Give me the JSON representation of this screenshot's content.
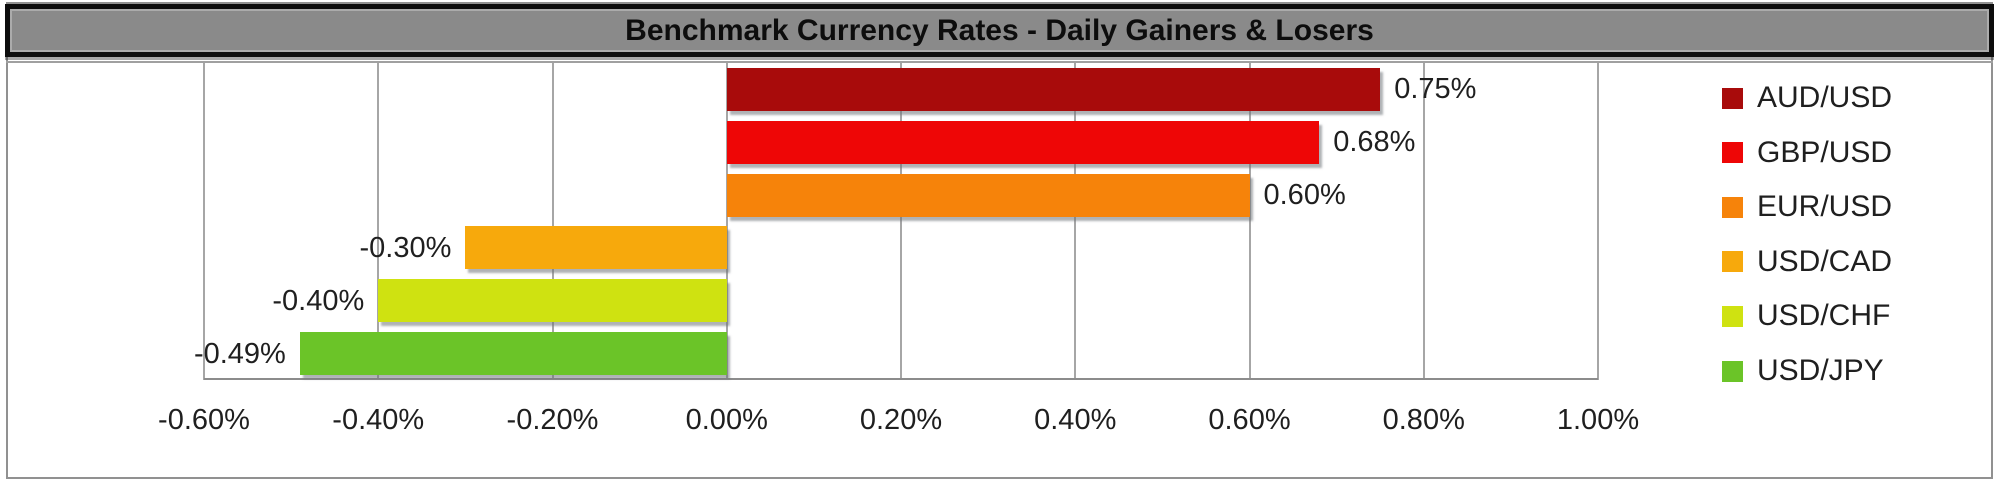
{
  "title": "Benchmark Currency Rates - Daily Gainers & Losers",
  "chart_data": {
    "type": "bar",
    "orientation": "horizontal",
    "title": "Benchmark Currency Rates - Daily Gainers & Losers",
    "categories": [
      "AUD/USD",
      "GBP/USD",
      "EUR/USD",
      "USD/CAD",
      "USD/CHF",
      "USD/JPY"
    ],
    "values": [
      0.75,
      0.68,
      0.6,
      -0.3,
      -0.4,
      -0.49
    ],
    "data_labels": [
      "0.75%",
      "0.68%",
      "0.60%",
      "-0.30%",
      "-0.40%",
      "-0.49%"
    ],
    "bar_colors": [
      "#a80b0b",
      "#ee0606",
      "#f6830a",
      "#f7a90c",
      "#cfe211",
      "#6bc428"
    ],
    "xlim": [
      -0.6,
      1.0
    ],
    "x_tick_values": [
      -0.6,
      -0.4,
      -0.2,
      0.0,
      0.2,
      0.4,
      0.6,
      0.8,
      1.0
    ],
    "x_tick_labels": [
      "-0.60%",
      "-0.40%",
      "-0.20%",
      "0.00%",
      "0.20%",
      "0.40%",
      "0.60%",
      "0.80%",
      "1.00%"
    ],
    "grid": true,
    "legend_position": "right",
    "legend": [
      "AUD/USD",
      "GBP/USD",
      "EUR/USD",
      "USD/CAD",
      "USD/CHF",
      "USD/JPY"
    ]
  },
  "colors": {
    "title_background": "#8a8a8a",
    "title_border": "#0d0d0d",
    "gridline": "#a6a6a6",
    "text": "#1f1f1f"
  }
}
